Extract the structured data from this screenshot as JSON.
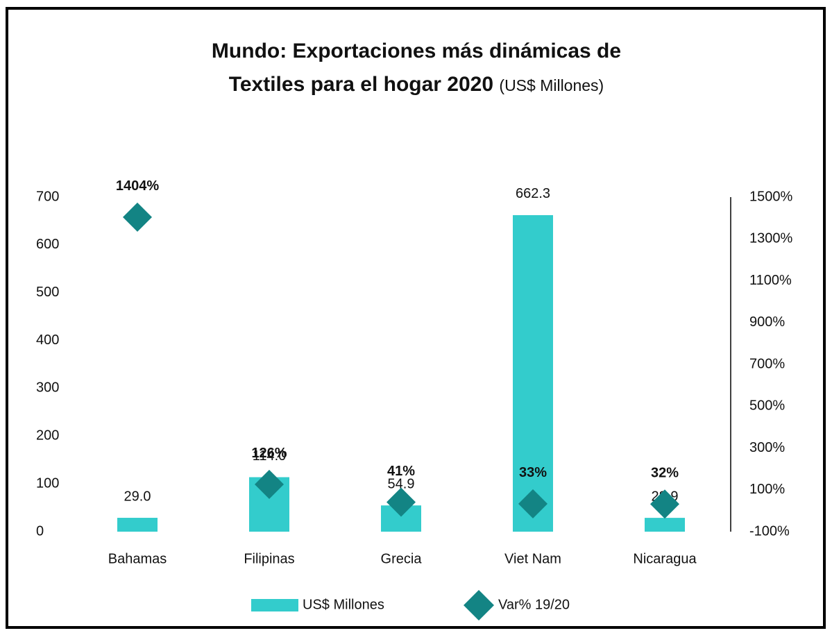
{
  "chart_data": {
    "type": "bar",
    "title": "Mundo: Exportaciones más dinámicas de Textiles para el hogar 2020",
    "subtitle": "(US$ Millones)",
    "categories": [
      "Bahamas",
      "Filipinas",
      "Grecia",
      "Viet Nam",
      "Nicaragua"
    ],
    "series": [
      {
        "name": "US$ Millones",
        "color": "#33cccc",
        "values": [
          29.0,
          114.0,
          54.9,
          662.3,
          28.9
        ],
        "value_labels": [
          "29.0",
          "114.0",
          "54.9",
          "662.3",
          "28.9"
        ]
      },
      {
        "name": "Var% 19/20",
        "color": "#138484",
        "axis": "y2",
        "values": [
          1404,
          126,
          41,
          33,
          32
        ],
        "value_labels": [
          "1404%",
          "126%",
          "41%",
          "33%",
          "32%"
        ]
      }
    ],
    "ylim": [
      0,
      700
    ],
    "yticks": [
      0,
      100,
      200,
      300,
      400,
      500,
      600,
      700
    ],
    "y2lim": [
      -100,
      1500
    ],
    "y2ticks": [
      {
        "value": -100,
        "label": "-100%"
      },
      {
        "value": 100,
        "label": "100%"
      },
      {
        "value": 300,
        "label": "300%"
      },
      {
        "value": 500,
        "label": "500%"
      },
      {
        "value": 700,
        "label": "700%"
      },
      {
        "value": 900,
        "label": "900%"
      },
      {
        "value": 1100,
        "label": "1100%"
      },
      {
        "value": 1300,
        "label": "1300%"
      },
      {
        "value": 1500,
        "label": "1500%"
      }
    ],
    "legend": "bottom"
  }
}
